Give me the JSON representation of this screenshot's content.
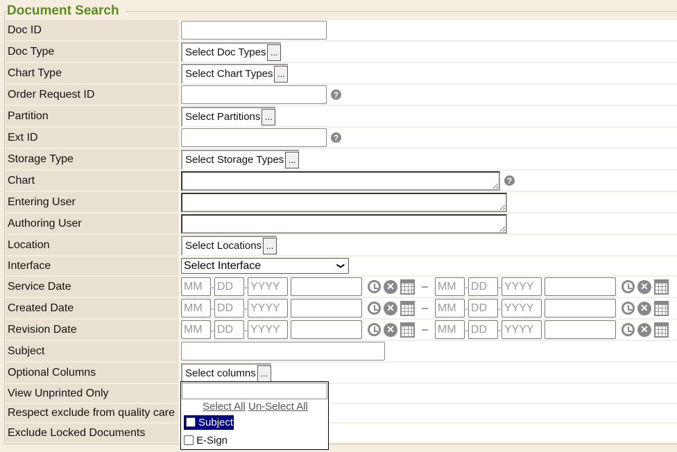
{
  "title": "Document Search",
  "fields": {
    "doc_id": "Doc ID",
    "doc_type": "Doc Type",
    "doc_type_btn": "Select Doc Types",
    "chart_type": "Chart Type",
    "chart_type_btn": "Select Chart Types",
    "order_request_id": "Order Request ID",
    "partition": "Partition",
    "partition_btn": "Select Partitions",
    "ext_id": "Ext ID",
    "storage_type": "Storage Type",
    "storage_type_btn": "Select Storage Types",
    "chart": "Chart",
    "entering_user": "Entering User",
    "authoring_user": "Authoring User",
    "location": "Location",
    "location_btn": "Select Locations",
    "interface": "Interface",
    "interface_value": "Select Interface",
    "service_date": "Service Date",
    "created_date": "Created Date",
    "revision_date": "Revision Date",
    "subject": "Subject",
    "optional_columns": "Optional Columns",
    "optional_columns_btn": "Select columns",
    "view_unprinted": "View Unprinted Only",
    "respect_exclude": "Respect exclude from quality care",
    "exclude_locked": "Exclude Locked Documents"
  },
  "more_label": "...",
  "help_glyph": "?",
  "date_placeholders": {
    "mm": "MM",
    "dd": "DD",
    "yyyy": "YYYY"
  },
  "range_sep": "–",
  "dropdown": {
    "select_all": "Select All",
    "unselect_all": "Un-Select All",
    "options": [
      {
        "label": "Subject",
        "checked": false,
        "highlighted": true
      },
      {
        "label": "E-Sign",
        "checked": false
      }
    ]
  }
}
